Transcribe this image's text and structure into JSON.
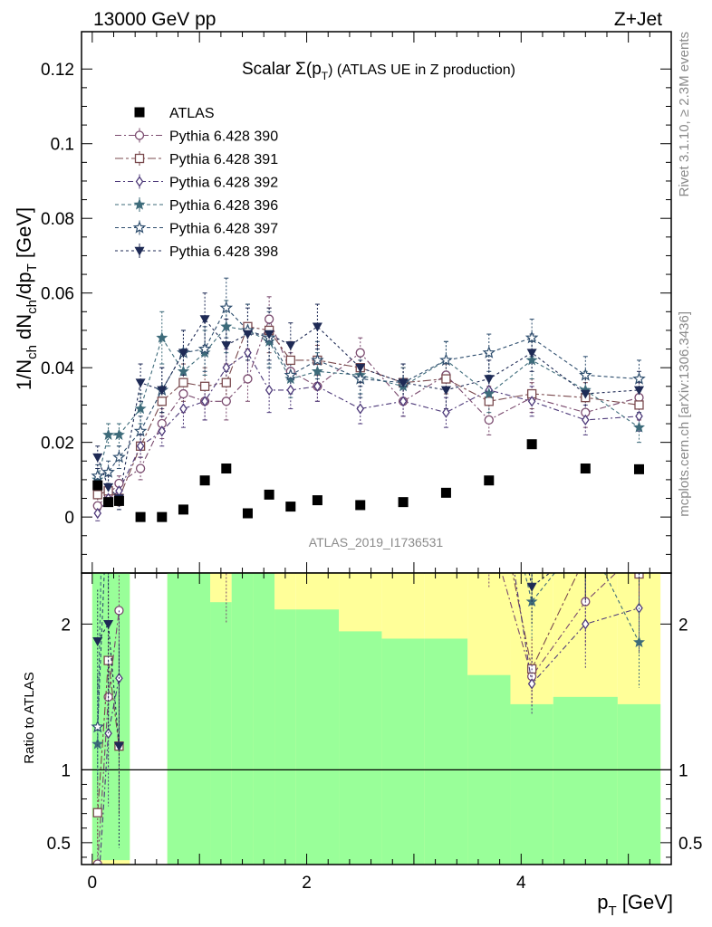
{
  "header": {
    "left": "13000 GeV pp",
    "right": "Z+Jet"
  },
  "side_labels": {
    "rivet": "Rivet 3.1.10, ≥ 2.3M events",
    "mcplots": "mcplots.cern.ch [arXiv:1306.3436]"
  },
  "chart_data": {
    "type": "scatter",
    "title": "Scalar Σ(p_T) (ATLAS UE in Z production)",
    "title_parts": {
      "main": "Scalar Σ(p",
      "sub": "T",
      "tail": ") (ATLAS UE in Z production)"
    },
    "analysis_id": "ATLAS_2019_I1736531",
    "ylabel_main": "1/N_ch dN_ch/dp_T [GeV]",
    "ylabel_ratio": "Ratio to ATLAS",
    "xlabel": "p_T [GeV]",
    "xlim": [
      -0.1,
      5.4
    ],
    "ylim_main": [
      -0.015,
      0.13
    ],
    "ylim_ratio": [
      0.35,
      2.35
    ],
    "xticks": [
      0,
      2,
      4
    ],
    "yticks_main": [
      0,
      0.02,
      0.04,
      0.06,
      0.08,
      0.1,
      0.12
    ],
    "ytick_labels_main": [
      "0",
      "0.02",
      "0.04",
      "0.06",
      "0.08",
      "0.1",
      "0.12"
    ],
    "yticks_ratio": [
      0.5,
      1,
      2
    ],
    "ytick_labels_ratio": [
      "0.5",
      "1",
      "2"
    ],
    "x": [
      0.05,
      0.15,
      0.25,
      0.45,
      0.65,
      0.85,
      1.05,
      1.25,
      1.45,
      1.65,
      1.85,
      2.1,
      2.5,
      2.9,
      3.3,
      3.7,
      4.1,
      4.6,
      5.1
    ],
    "atlas": {
      "name": "ATLAS",
      "values": [
        0.0085,
        0.004,
        0.0043,
        0.0,
        0.0,
        0.002,
        0.0098,
        0.013,
        0.001,
        0.006,
        0.0028,
        0.0045,
        0.0032,
        0.004,
        0.0065,
        0.0098,
        0.0195,
        0.013,
        0.0128
      ]
    },
    "ratio_band_green": [
      [
        0.0,
        0.1,
        0.38,
        2.35
      ],
      [
        0.1,
        0.2,
        0.38,
        2.35
      ],
      [
        0.2,
        0.35,
        0.38,
        2.35
      ],
      [
        0.7,
        1.1,
        0.35,
        2.35
      ],
      [
        1.1,
        1.3,
        0.35,
        2.15
      ],
      [
        1.3,
        1.5,
        0.35,
        2.35
      ],
      [
        1.5,
        1.7,
        0.35,
        2.35
      ],
      [
        1.7,
        1.9,
        0.35,
        2.1
      ],
      [
        1.9,
        2.3,
        0.35,
        2.1
      ],
      [
        2.3,
        2.7,
        0.35,
        1.95
      ],
      [
        2.7,
        3.1,
        0.35,
        1.9
      ],
      [
        3.1,
        3.5,
        0.35,
        1.9
      ],
      [
        3.5,
        3.9,
        0.35,
        1.65
      ],
      [
        3.9,
        4.3,
        0.35,
        1.45
      ],
      [
        4.3,
        4.9,
        0.35,
        1.5
      ],
      [
        4.9,
        5.3,
        0.35,
        1.45
      ]
    ],
    "ratio_band_yellow": [
      [
        0.0,
        0.1,
        0.35,
        2.35
      ],
      [
        0.1,
        0.2,
        0.35,
        2.35
      ],
      [
        0.2,
        0.35,
        0.35,
        2.35
      ],
      [
        0.7,
        1.1,
        0.35,
        2.35
      ],
      [
        1.1,
        1.3,
        0.35,
        2.35
      ],
      [
        1.3,
        1.5,
        0.35,
        2.35
      ],
      [
        1.5,
        1.7,
        0.35,
        2.35
      ],
      [
        1.7,
        1.9,
        0.35,
        2.35
      ],
      [
        1.9,
        2.3,
        0.35,
        2.35
      ],
      [
        2.3,
        2.7,
        0.35,
        2.35
      ],
      [
        2.7,
        3.1,
        0.35,
        2.35
      ],
      [
        3.1,
        3.5,
        0.35,
        2.35
      ],
      [
        3.5,
        3.9,
        0.35,
        2.35
      ],
      [
        3.9,
        4.3,
        0.35,
        2.35
      ],
      [
        4.3,
        4.9,
        0.35,
        2.35
      ],
      [
        4.9,
        5.3,
        0.35,
        2.35
      ]
    ],
    "series": [
      {
        "name": "Pythia 6.428 390",
        "marker": "circle",
        "color": "#7a4a6e",
        "dash": "7,3,2,3",
        "values": [
          0.003,
          0.006,
          0.009,
          0.013,
          0.025,
          0.033,
          0.031,
          0.031,
          0.037,
          0.053,
          0.039,
          0.035,
          0.044,
          0.031,
          0.038,
          0.026,
          0.032,
          0.028,
          0.032
        ],
        "errors": [
          0.002,
          0.002,
          0.002,
          0.003,
          0.004,
          0.005,
          0.005,
          0.005,
          0.006,
          0.006,
          0.005,
          0.004,
          0.004,
          0.004,
          0.004,
          0.004,
          0.004,
          0.004,
          0.004
        ]
      },
      {
        "name": "Pythia 6.428 391",
        "marker": "square",
        "color": "#7a4a4e",
        "dash": "9,3,3,3",
        "values": [
          0.006,
          0.007,
          0.005,
          0.019,
          0.031,
          0.036,
          0.035,
          0.036,
          0.051,
          0.05,
          0.042,
          0.042,
          0.04,
          0.036,
          0.037,
          0.031,
          0.033,
          0.032,
          0.03
        ],
        "errors": [
          0.002,
          0.002,
          0.002,
          0.003,
          0.004,
          0.005,
          0.005,
          0.005,
          0.006,
          0.006,
          0.005,
          0.004,
          0.004,
          0.004,
          0.004,
          0.004,
          0.004,
          0.004,
          0.004
        ]
      },
      {
        "name": "Pythia 6.428 392",
        "marker": "diamond",
        "color": "#4e3a7a",
        "dash": "6,3,2,3",
        "values": [
          0.001,
          0.005,
          0.007,
          0.019,
          0.023,
          0.029,
          0.031,
          0.04,
          0.044,
          0.034,
          0.034,
          0.035,
          0.029,
          0.031,
          0.028,
          0.034,
          0.031,
          0.026,
          0.027
        ],
        "errors": [
          0.002,
          0.002,
          0.002,
          0.003,
          0.004,
          0.005,
          0.005,
          0.005,
          0.006,
          0.006,
          0.005,
          0.004,
          0.004,
          0.004,
          0.004,
          0.004,
          0.004,
          0.004,
          0.004
        ]
      },
      {
        "name": "Pythia 6.428 396",
        "marker": "star",
        "color": "#3d6b7a",
        "dash": "4,3",
        "values": [
          0.01,
          0.022,
          0.022,
          0.029,
          0.048,
          0.039,
          0.044,
          0.051,
          0.05,
          0.047,
          0.037,
          0.039,
          0.038,
          0.035,
          0.042,
          0.033,
          0.042,
          0.034,
          0.024
        ],
        "errors": [
          0.003,
          0.003,
          0.003,
          0.004,
          0.007,
          0.006,
          0.006,
          0.007,
          0.007,
          0.007,
          0.005,
          0.005,
          0.005,
          0.005,
          0.005,
          0.005,
          0.005,
          0.005,
          0.004
        ]
      },
      {
        "name": "Pythia 6.428 397",
        "marker": "star-open",
        "color": "#2e4e6e",
        "dash": "4,3",
        "values": [
          0.011,
          0.012,
          0.016,
          0.023,
          0.034,
          0.044,
          0.045,
          0.056,
          0.05,
          0.048,
          0.038,
          0.042,
          0.037,
          0.036,
          0.042,
          0.044,
          0.048,
          0.038,
          0.037
        ],
        "errors": [
          0.003,
          0.003,
          0.003,
          0.004,
          0.006,
          0.006,
          0.006,
          0.008,
          0.007,
          0.007,
          0.005,
          0.005,
          0.005,
          0.005,
          0.005,
          0.005,
          0.005,
          0.005,
          0.005
        ]
      },
      {
        "name": "Pythia 6.428 398",
        "marker": "triangle-down",
        "color": "#1e2a55",
        "dash": "3,3",
        "values": [
          0.016,
          0.008,
          0.005,
          0.036,
          0.034,
          0.044,
          0.053,
          0.046,
          0.049,
          0.049,
          0.046,
          0.051,
          0.04,
          0.036,
          0.034,
          0.037,
          0.044,
          0.033,
          0.034
        ],
        "errors": [
          0.003,
          0.003,
          0.003,
          0.005,
          0.006,
          0.006,
          0.007,
          0.007,
          0.007,
          0.007,
          0.006,
          0.006,
          0.005,
          0.005,
          0.005,
          0.005,
          0.005,
          0.005,
          0.005
        ]
      }
    ]
  }
}
